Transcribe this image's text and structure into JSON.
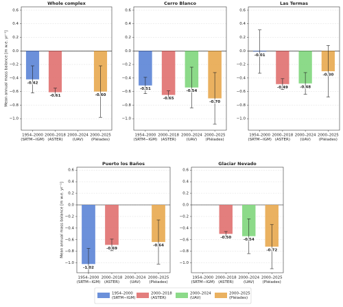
{
  "chart_data": [
    {
      "type": "bar",
      "title": "Whole complex",
      "ylabel": "Mean annual mass balance [m w.e. yr⁻¹]",
      "categories": [
        [
          "1954–2000",
          "(SRTM−IGM)"
        ],
        [
          "2000–2018",
          "(ASTER)"
        ],
        [
          "2000–2024",
          "(UAV)"
        ],
        [
          "2000–2025",
          "(Pléiades)"
        ]
      ],
      "values": [
        -0.42,
        -0.61,
        null,
        -0.6
      ],
      "errors": [
        0.2,
        0.06,
        null,
        0.38
      ],
      "value_labels": [
        "-0.42",
        "-0.61",
        null,
        "-0.60"
      ],
      "colors": [
        "#5b84d6",
        "#e0706f",
        "#7fd67c",
        "#e8a94f"
      ],
      "ylim": [
        -1.17,
        0.65
      ],
      "yticks": [
        {
          "value": -1.0,
          "label": "−1.0"
        },
        {
          "value": -0.8,
          "label": "−0.8"
        },
        {
          "value": -0.6,
          "label": "−0.6"
        },
        {
          "value": -0.4,
          "label": "−0.4"
        },
        {
          "value": -0.2,
          "label": "−0.2"
        },
        {
          "value": 0,
          "label": "0.0"
        },
        0.2,
        0.4,
        0.6
      ],
      "grid": true
    },
    {
      "type": "bar",
      "title": "Cerro Blanco",
      "categories": [
        [
          "1954–2000",
          "(SRTM−IGM)"
        ],
        [
          "2000–2018",
          "(ASTER)"
        ],
        [
          "2000–2024",
          "(UAV)"
        ],
        [
          "2000–2025",
          "(Pléiades)"
        ]
      ],
      "values": [
        -0.51,
        -0.65,
        -0.54,
        -0.7
      ],
      "errors": [
        0.12,
        0.06,
        0.3,
        0.38
      ],
      "value_labels": [
        "-0.51",
        "-0.65",
        "-0.54",
        "-0.70"
      ],
      "colors": [
        "#5b84d6",
        "#e0706f",
        "#7fd67c",
        "#e8a94f"
      ],
      "ylim": [
        -1.17,
        0.65
      ],
      "yticks": [
        {
          "value": -1.0,
          "label": "−1.0"
        },
        {
          "value": -0.8,
          "label": "−0.8"
        },
        {
          "value": -0.6,
          "label": "−0.6"
        },
        {
          "value": -0.4,
          "label": "−0.4"
        },
        {
          "value": -0.2,
          "label": "−0.2"
        },
        {
          "value": 0,
          "label": "0.0"
        },
        0.2,
        0.4,
        0.6
      ],
      "grid": true
    },
    {
      "type": "bar",
      "title": "Las Termas",
      "categories": [
        [
          "1954–2000",
          "(SRTM−IGM)"
        ],
        [
          "2000–2018",
          "(ASTER)"
        ],
        [
          "2000–2024",
          "(UAV)"
        ],
        [
          "2000–2025",
          "(Pléiades)"
        ]
      ],
      "values": [
        -0.01,
        -0.49,
        -0.48,
        -0.3
      ],
      "errors": [
        0.32,
        0.08,
        0.16,
        0.38
      ],
      "value_labels": [
        "-0.01",
        "-0.49",
        "-0.48",
        "-0.30"
      ],
      "colors": [
        "#5b84d6",
        "#e0706f",
        "#7fd67c",
        "#e8a94f"
      ],
      "ylim": [
        -1.17,
        0.65
      ],
      "yticks": [
        {
          "value": -1.0,
          "label": "−1.0"
        },
        {
          "value": -0.8,
          "label": "−0.8"
        },
        {
          "value": -0.6,
          "label": "−0.6"
        },
        {
          "value": -0.4,
          "label": "−0.4"
        },
        {
          "value": -0.2,
          "label": "−0.2"
        },
        {
          "value": 0,
          "label": "0.0"
        },
        0.2,
        0.4,
        0.6
      ],
      "grid": true
    },
    {
      "type": "bar",
      "title": "Puerto los Baños",
      "ylabel": "Mean annual mass balance [m w.e. yr⁻¹]",
      "categories": [
        [
          "1954–2000",
          "(SRTM−IGM)"
        ],
        [
          "2000–2018",
          "(ASTER)"
        ],
        [
          "2000–2024",
          "(UAV)"
        ],
        [
          "2000–2025",
          "(Pléiades)"
        ]
      ],
      "values": [
        -1.02,
        -0.69,
        null,
        -0.64
      ],
      "errors": [
        0.27,
        0.1,
        null,
        0.38
      ],
      "value_labels": [
        "-1.02",
        "-0.69",
        null,
        "-0.64"
      ],
      "colors": [
        "#5b84d6",
        "#e0706f",
        "#7fd67c",
        "#e8a94f"
      ],
      "ylim": [
        -1.17,
        0.65
      ],
      "yticks": [
        {
          "value": -1.0,
          "label": "−1.0"
        },
        {
          "value": -0.8,
          "label": "−0.8"
        },
        {
          "value": -0.6,
          "label": "−0.6"
        },
        {
          "value": -0.4,
          "label": "−0.4"
        },
        {
          "value": -0.2,
          "label": "−0.2"
        },
        {
          "value": 0,
          "label": "0.0"
        },
        0.2,
        0.4,
        0.6
      ],
      "grid": true
    },
    {
      "type": "bar",
      "title": "Glaciar Nevado",
      "categories": [
        [
          "1954–2000",
          "(SRTM−IGM)"
        ],
        [
          "2000–2018",
          "(ASTER)"
        ],
        [
          "2000–2024",
          "(UAV)"
        ],
        [
          "2000–2025",
          "(Pléiades)"
        ]
      ],
      "values": [
        null,
        -0.5,
        -0.54,
        -0.72
      ],
      "errors": [
        null,
        0.04,
        0.3,
        0.38
      ],
      "value_labels": [
        null,
        "-0.50",
        "-0.54",
        "-0.72"
      ],
      "colors": [
        "#5b84d6",
        "#e0706f",
        "#7fd67c",
        "#e8a94f"
      ],
      "ylim": [
        -1.17,
        0.65
      ],
      "yticks": [
        {
          "value": -1.0,
          "label": "−1.0"
        },
        {
          "value": -0.8,
          "label": "−0.8"
        },
        {
          "value": -0.6,
          "label": "−0.6"
        },
        {
          "value": -0.4,
          "label": "−0.4"
        },
        {
          "value": -0.2,
          "label": "−0.2"
        },
        {
          "value": 0,
          "label": "0.0"
        },
        0.2,
        0.4,
        0.6
      ],
      "grid": true
    }
  ],
  "legend": {
    "items": [
      {
        "label": [
          "1954–2000",
          "(SRTM−IGM)"
        ],
        "color": "#5b84d6"
      },
      {
        "label": [
          "2000–2018",
          "(ASTER)"
        ],
        "color": "#e0706f"
      },
      {
        "label": [
          "2000–2024",
          "(UAV)"
        ],
        "color": "#7fd67c"
      },
      {
        "label": [
          "2000–2025",
          "(Pléiades)"
        ],
        "color": "#e8a94f"
      }
    ]
  }
}
